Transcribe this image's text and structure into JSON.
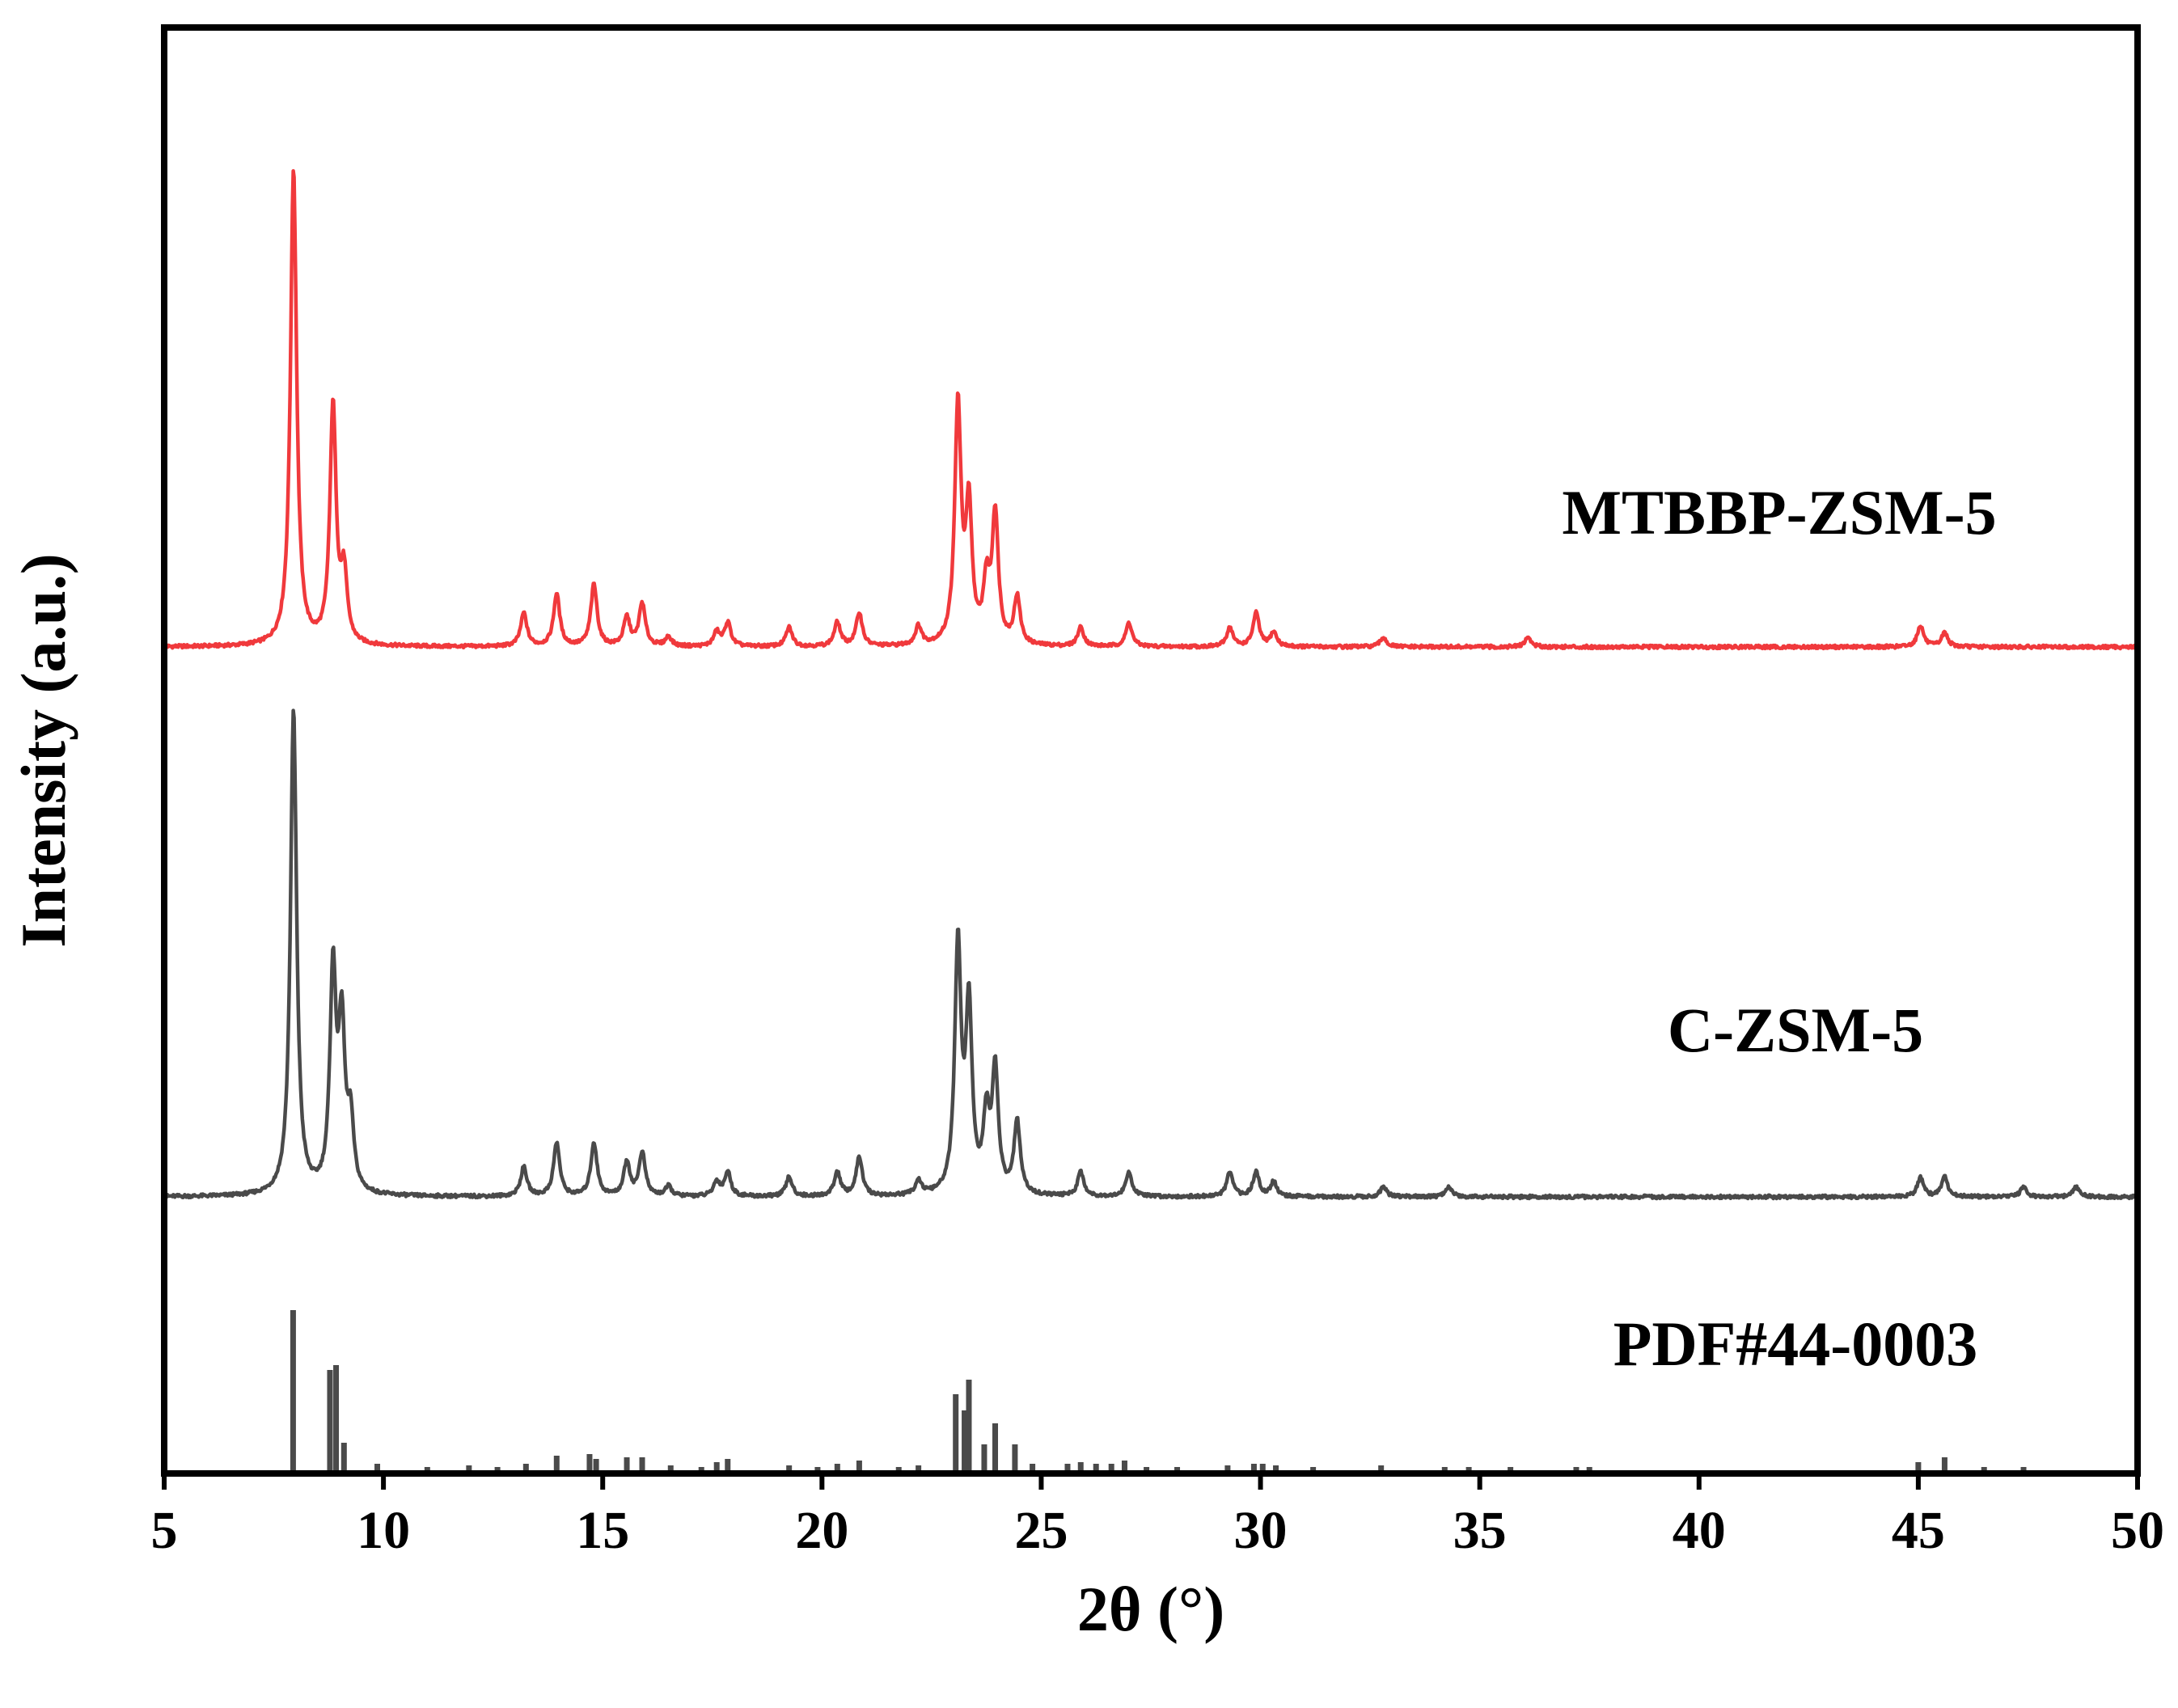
{
  "chart_data": {
    "type": "line",
    "title": "",
    "xlabel": "2θ (°)",
    "ylabel": "Intensity (a.u.)",
    "xlim": [
      5,
      50
    ],
    "xticks": [
      "5",
      "10",
      "15",
      "20",
      "25",
      "30",
      "35",
      "40",
      "45",
      "50"
    ],
    "yticks": [],
    "grid": false,
    "legend": "none",
    "series": [
      {
        "name": "MTBBP-ZSM-5",
        "color": "#f0393c",
        "kind": "profile",
        "peaks": [
          [
            7.95,
            100
          ],
          [
            8.85,
            50
          ],
          [
            9.1,
            14
          ],
          [
            13.2,
            7
          ],
          [
            13.95,
            11
          ],
          [
            14.8,
            13
          ],
          [
            15.55,
            6
          ],
          [
            15.9,
            9
          ],
          [
            16.5,
            2
          ],
          [
            17.6,
            3
          ],
          [
            17.85,
            5
          ],
          [
            19.25,
            4
          ],
          [
            20.35,
            5
          ],
          [
            20.85,
            7
          ],
          [
            22.2,
            4
          ],
          [
            23.1,
            50
          ],
          [
            23.35,
            28
          ],
          [
            23.75,
            12
          ],
          [
            23.95,
            27
          ],
          [
            24.45,
            10
          ],
          [
            25.9,
            4
          ],
          [
            27.0,
            5
          ],
          [
            29.3,
            4
          ],
          [
            29.9,
            7
          ],
          [
            30.3,
            3
          ],
          [
            32.8,
            2
          ],
          [
            36.1,
            2
          ],
          [
            45.05,
            4.5
          ],
          [
            45.6,
            3
          ]
        ]
      },
      {
        "name": "C-ZSM-5",
        "color": "#4a4a4a",
        "kind": "profile",
        "peaks": [
          [
            7.95,
            100
          ],
          [
            8.85,
            45
          ],
          [
            9.05,
            33
          ],
          [
            9.25,
            14
          ],
          [
            13.2,
            6
          ],
          [
            13.95,
            11
          ],
          [
            14.8,
            11
          ],
          [
            15.55,
            7
          ],
          [
            15.9,
            9
          ],
          [
            16.5,
            2
          ],
          [
            17.6,
            3
          ],
          [
            17.85,
            5
          ],
          [
            19.25,
            4
          ],
          [
            20.35,
            5
          ],
          [
            20.85,
            8
          ],
          [
            22.2,
            3
          ],
          [
            23.1,
            51
          ],
          [
            23.35,
            38
          ],
          [
            23.75,
            15
          ],
          [
            23.95,
            25
          ],
          [
            24.45,
            15
          ],
          [
            25.9,
            5
          ],
          [
            27.0,
            5
          ],
          [
            29.3,
            5
          ],
          [
            29.9,
            5
          ],
          [
            30.3,
            3
          ],
          [
            32.8,
            2
          ],
          [
            34.3,
            2
          ],
          [
            45.05,
            4
          ],
          [
            45.6,
            4
          ],
          [
            47.4,
            2
          ],
          [
            48.6,
            2
          ]
        ]
      },
      {
        "name": "PDF#44-0003",
        "color": "#4a4a4a",
        "kind": "sticks",
        "peaks": [
          [
            7.94,
            100
          ],
          [
            8.78,
            63
          ],
          [
            8.92,
            66
          ],
          [
            9.1,
            18
          ],
          [
            9.86,
            5
          ],
          [
            11.0,
            3
          ],
          [
            11.95,
            4
          ],
          [
            12.6,
            3
          ],
          [
            13.25,
            5
          ],
          [
            13.95,
            10
          ],
          [
            14.7,
            11
          ],
          [
            14.85,
            8
          ],
          [
            15.55,
            9
          ],
          [
            15.9,
            9
          ],
          [
            16.55,
            4
          ],
          [
            17.25,
            3
          ],
          [
            17.6,
            6
          ],
          [
            17.85,
            8
          ],
          [
            19.25,
            4
          ],
          [
            19.9,
            3
          ],
          [
            20.35,
            5
          ],
          [
            20.85,
            7
          ],
          [
            21.75,
            3
          ],
          [
            22.2,
            4
          ],
          [
            23.05,
            48
          ],
          [
            23.25,
            38
          ],
          [
            23.35,
            57
          ],
          [
            23.7,
            17
          ],
          [
            23.95,
            30
          ],
          [
            24.4,
            17
          ],
          [
            24.8,
            5
          ],
          [
            25.6,
            5
          ],
          [
            25.9,
            6
          ],
          [
            26.25,
            5
          ],
          [
            26.6,
            5
          ],
          [
            26.9,
            7
          ],
          [
            27.4,
            3
          ],
          [
            28.1,
            3
          ],
          [
            29.25,
            4
          ],
          [
            29.85,
            5
          ],
          [
            30.05,
            5
          ],
          [
            30.35,
            4
          ],
          [
            31.2,
            3
          ],
          [
            32.75,
            4
          ],
          [
            34.2,
            3
          ],
          [
            34.75,
            3
          ],
          [
            35.7,
            3
          ],
          [
            37.2,
            3
          ],
          [
            37.5,
            3
          ],
          [
            45.0,
            6
          ],
          [
            45.6,
            9
          ],
          [
            46.5,
            3
          ],
          [
            47.4,
            3
          ]
        ]
      }
    ]
  }
}
